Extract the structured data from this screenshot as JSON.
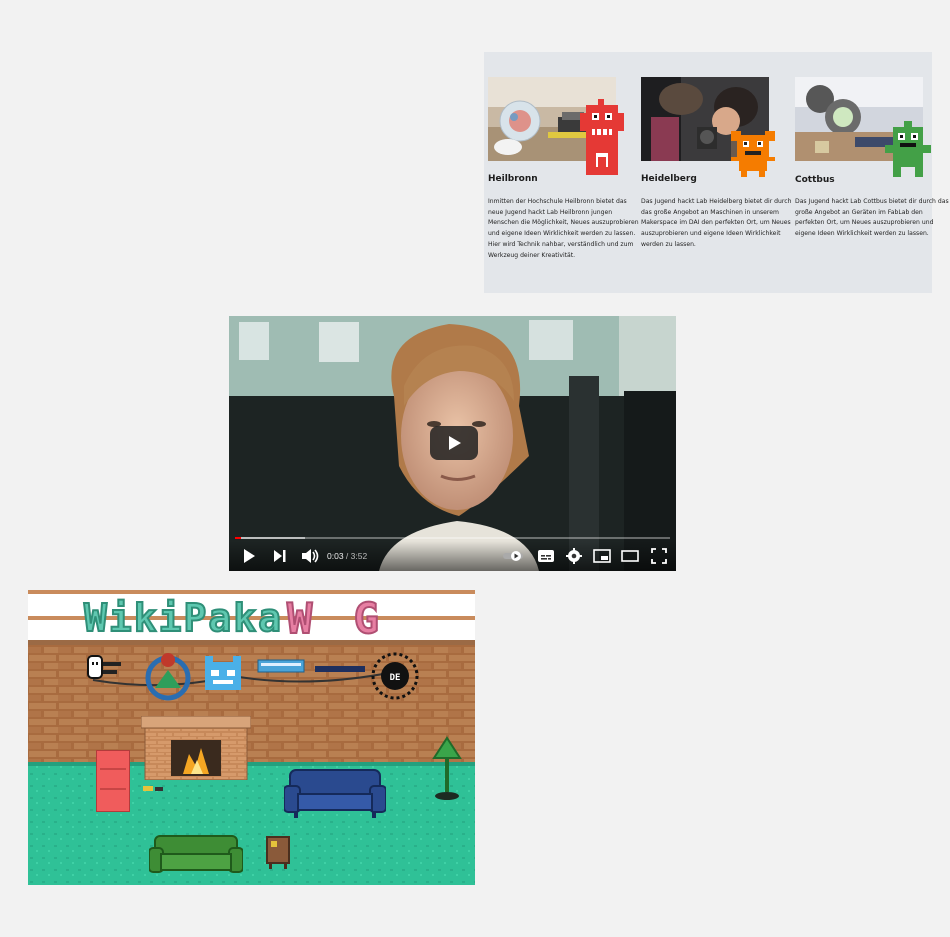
{
  "labs": {
    "cards": [
      {
        "title": "Heilbronn",
        "text": "Inmitten der Hochschule Heilbronn bietet das neue Jugend hackt Lab Heilbronn jungen Menschen die Möglichkeit, Neues auszuprobieren und eigene Ideen Wirklichkeit werden zu lassen. Hier wird Technik nahbar, verständlich und zum Werkzeug deiner Kreativität."
      },
      {
        "title": "Heidelberg",
        "text": "Das Jugend hackt Lab Heidelberg bietet dir durch das große Angebot an Maschinen in unserem Makerspace im DAI den perfekten Ort, um Neues auszuprobieren und eigene Ideen Wirklichkeit werden zu lassen."
      },
      {
        "title": "Cottbus",
        "text": "Das Jugend hackt Lab Cottbus bietet dir durch das große Angebot an Geräten im FabLab den perfekten Ort, um Neues auszuprobieren und eigene Ideen Wirklichkeit werden zu lassen."
      }
    ],
    "mascot_colors": {
      "red": "#e53935",
      "orange": "#f57c00",
      "green": "#43a047"
    }
  },
  "video": {
    "current_time": "0:03",
    "separator": "/",
    "duration": "3:52",
    "progress": 0.013,
    "icons": [
      "play-icon",
      "next-icon",
      "volume-icon",
      "autoplay-toggle-icon",
      "subtitles-icon",
      "settings-icon",
      "miniplayer-icon",
      "theater-mode-icon",
      "fullscreen-icon"
    ]
  },
  "game": {
    "title_part1": "WikiPaka",
    "title_part2": "W G",
    "colors": {
      "title_teal": "#5fc8b0",
      "title_pink": "#e77fa3",
      "floor": "#2fc197",
      "brick": "#b87a4b"
    }
  }
}
